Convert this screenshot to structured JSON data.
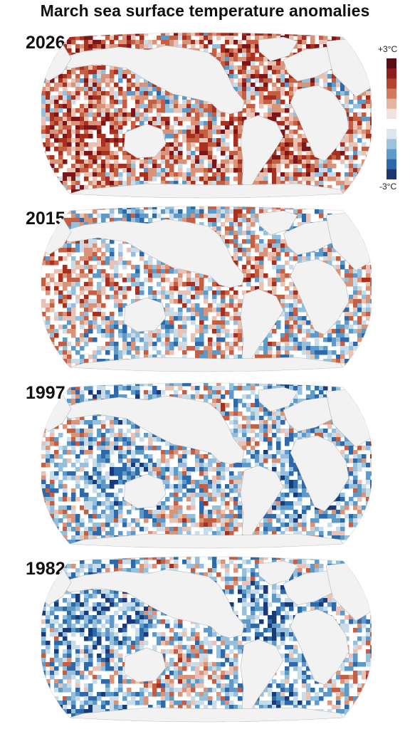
{
  "title": "March sea surface temperature anomalies",
  "legend": {
    "max_label": "+3°C",
    "min_label": "-3°C",
    "colors": [
      "#5a0d12",
      "#8e1f1c",
      "#b6432f",
      "#d17a5e",
      "#e6b4a2",
      "#f1e4de",
      "#ffffff",
      "#dbe6ee",
      "#9cc3dc",
      "#5d9cc8",
      "#2a6aaa",
      "#1a3770"
    ]
  },
  "panels": [
    {
      "year": "2026",
      "warm": 0.62,
      "cool": 0.14
    },
    {
      "year": "2015",
      "warm": 0.34,
      "cool": 0.3
    },
    {
      "year": "1997",
      "warm": 0.18,
      "cool": 0.5
    },
    {
      "year": "1982",
      "warm": 0.12,
      "cool": 0.52
    }
  ]
}
